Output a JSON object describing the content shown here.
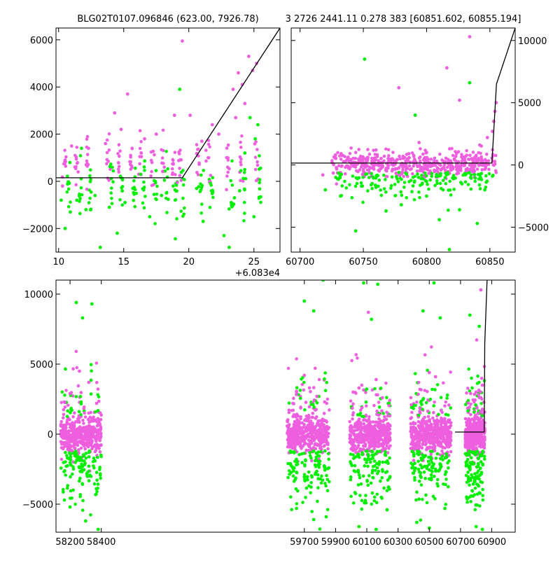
{
  "title_left": "BLG02T0107.096846 (623.00, 7926.78)",
  "title_right": "3 2726 2441.11 0.278 383 [60851.602, 60855.194]",
  "colors": {
    "series_a": "#ee5fdf",
    "series_b": "#00ee00",
    "model": "#000000"
  },
  "chart_data": [
    {
      "type": "scatter",
      "panel": "top-left",
      "title": "BLG02T0107.096846 (623.00, 7926.78)",
      "x_offset_label": "+6.083e4",
      "xlim": [
        9.8,
        27.0
      ],
      "ylim": [
        -3000,
        6500
      ],
      "x_ticks": [
        10,
        15,
        20,
        25
      ],
      "y_ticks": [
        -2000,
        0,
        2000,
        4000,
        6000
      ],
      "y_tick_labels": [
        "−2000",
        "0",
        "2000",
        "4000",
        "6000"
      ],
      "tick_side": "left",
      "model_line": {
        "x": [
          9.8,
          19.5,
          27.0
        ],
        "y": [
          150,
          150,
          6500
        ]
      },
      "series": [
        {
          "color": "#ee5fdf",
          "points": [
            [
              10.3,
              -200
            ],
            [
              11.0,
              1500
            ],
            [
              11.5,
              400
            ],
            [
              12.3,
              1400
            ],
            [
              13.6,
              1600
            ],
            [
              14.3,
              2900
            ],
            [
              14.8,
              2200
            ],
            [
              15.3,
              3700
            ],
            [
              16.6,
              1800
            ],
            [
              17.5,
              2000
            ],
            [
              18.9,
              2800
            ],
            [
              19.5,
              5950
            ],
            [
              20.1,
              2800
            ],
            [
              21.0,
              1700
            ],
            [
              21.8,
              2400
            ],
            [
              22.3,
              2000
            ],
            [
              23.4,
              3900
            ],
            [
              23.8,
              4600
            ],
            [
              24.1,
              4100
            ],
            [
              24.6,
              5300
            ],
            [
              24.9,
              4700
            ],
            [
              25.2,
              5000
            ],
            [
              24.3,
              3300
            ],
            [
              23.6,
              2700
            ]
          ]
        },
        {
          "color": "#00ee00",
          "points": [
            [
              10.2,
              -800
            ],
            [
              10.5,
              -2000
            ],
            [
              10.9,
              -1300
            ],
            [
              11.4,
              -800
            ],
            [
              12.1,
              -1200
            ],
            [
              12.8,
              -600
            ],
            [
              13.2,
              -2800
            ],
            [
              13.9,
              -1100
            ],
            [
              14.5,
              -2200
            ],
            [
              15.1,
              -900
            ],
            [
              15.7,
              -300
            ],
            [
              16.3,
              300
            ],
            [
              17.0,
              -1500
            ],
            [
              17.9,
              -600
            ],
            [
              18.8,
              -200
            ],
            [
              19.3,
              3900
            ],
            [
              20.6,
              -300
            ],
            [
              21.1,
              -1700
            ],
            [
              22.7,
              -2300
            ],
            [
              23.1,
              -2800
            ],
            [
              23.5,
              -700
            ],
            [
              23.9,
              -400
            ],
            [
              24.3,
              1200
            ],
            [
              25.0,
              -1500
            ],
            [
              25.3,
              2400
            ],
            [
              24.7,
              2700
            ],
            [
              25.1,
              1800
            ]
          ]
        }
      ]
    },
    {
      "type": "scatter",
      "panel": "top-right",
      "title": "3 2726 2441.11 0.278 383 [60851.602, 60855.194]",
      "xlim": [
        60693,
        60870
      ],
      "ylim": [
        -7000,
        11000
      ],
      "x_ticks": [
        60700,
        60750,
        60800,
        60850
      ],
      "y_ticks": [
        -5000,
        0,
        5000,
        10000
      ],
      "y_tick_labels": [
        "−5000",
        "0",
        "5000",
        "10000"
      ],
      "tick_side": "right",
      "model_line": {
        "x": [
          60693,
          60851.6,
          60855.2,
          60870
        ],
        "y": [
          150,
          150,
          6500,
          11000
        ]
      },
      "series": [
        {
          "color": "#ee5fdf",
          "points": [
            [
              60718,
              -800
            ],
            [
              60728,
              800
            ],
            [
              60738,
              600
            ],
            [
              60752,
              500
            ],
            [
              60760,
              1200
            ],
            [
              60770,
              300
            ],
            [
              60778,
              6200
            ],
            [
              60786,
              900
            ],
            [
              60794,
              1800
            ],
            [
              60800,
              1000
            ],
            [
              60808,
              300
            ],
            [
              60816,
              7800
            ],
            [
              60826,
              5200
            ],
            [
              60834,
              10300
            ],
            [
              60842,
              1600
            ],
            [
              60848,
              2200
            ],
            [
              60852,
              2700
            ],
            [
              60853,
              3500
            ],
            [
              60854,
              4300
            ],
            [
              60855,
              5000
            ]
          ]
        },
        {
          "color": "#00ee00",
          "points": [
            [
              60720,
              -2000
            ],
            [
              60732,
              -2500
            ],
            [
              60744,
              -5300
            ],
            [
              60751,
              8500
            ],
            [
              60760,
              -1800
            ],
            [
              60768,
              -3700
            ],
            [
              60780,
              -3200
            ],
            [
              60791,
              4000
            ],
            [
              60800,
              -2500
            ],
            [
              60810,
              -4400
            ],
            [
              60818,
              -6800
            ],
            [
              60826,
              -3600
            ],
            [
              60834,
              6600
            ],
            [
              60840,
              -4700
            ],
            [
              60846,
              -2000
            ],
            [
              60852,
              -900
            ]
          ]
        }
      ]
    },
    {
      "type": "scatter",
      "panel": "bottom",
      "xlim": [
        58110,
        61050
      ],
      "ylim": [
        -7000,
        11000
      ],
      "x_ticks": [
        58200,
        58400,
        59700,
        59900,
        60100,
        60300,
        60500,
        60700,
        60900
      ],
      "y_ticks": [
        -5000,
        0,
        5000,
        10000
      ],
      "y_tick_labels": [
        "−5000",
        "0",
        "5000",
        "10000"
      ],
      "tick_side": "left",
      "model_line": {
        "x": [
          60665,
          60851.6,
          60855.2,
          60870
        ],
        "y": [
          150,
          150,
          6500,
          11000
        ]
      },
      "seasons": [
        {
          "x_range": [
            58140,
            58400
          ]
        },
        {
          "x_range": [
            59590,
            59860
          ]
        },
        {
          "x_range": [
            59990,
            60250
          ]
        },
        {
          "x_range": [
            60380,
            60640
          ]
        },
        {
          "x_range": [
            60730,
            60855
          ]
        }
      ],
      "series": [
        {
          "color": "#ee5fdf",
          "points": [
            [
              58200,
              2900
            ],
            [
              58260,
              4500
            ],
            [
              58320,
              3700
            ],
            [
              58370,
              2200
            ],
            [
              59650,
              3000
            ],
            [
              59700,
              4200
            ],
            [
              59780,
              2700
            ],
            [
              59830,
              2300
            ],
            [
              60050,
              3300
            ],
            [
              60110,
              8700
            ],
            [
              60160,
              3900
            ],
            [
              60200,
              2600
            ],
            [
              60440,
              3200
            ],
            [
              60500,
              4400
            ],
            [
              60540,
              4100
            ],
            [
              60800,
              3000
            ],
            [
              60830,
              10300
            ],
            [
              60840,
              3500
            ]
          ]
        },
        {
          "color": "#00ee00",
          "points": [
            [
              58240,
              9400
            ],
            [
              58280,
              8300
            ],
            [
              58340,
              9300
            ],
            [
              58200,
              -5200
            ],
            [
              58300,
              -6200
            ],
            [
              58380,
              -6800
            ],
            [
              59700,
              9500
            ],
            [
              59760,
              8800
            ],
            [
              59820,
              11000
            ],
            [
              59650,
              -5300
            ],
            [
              59760,
              -6100
            ],
            [
              59840,
              -5900
            ],
            [
              60080,
              10800
            ],
            [
              60130,
              8200
            ],
            [
              60170,
              10700
            ],
            [
              60050,
              -6600
            ],
            [
              60160,
              -6800
            ],
            [
              60230,
              -5400
            ],
            [
              60460,
              8800
            ],
            [
              60530,
              10800
            ],
            [
              60570,
              8300
            ],
            [
              60420,
              -6300
            ],
            [
              60500,
              -6700
            ],
            [
              60600,
              -5300
            ],
            [
              60760,
              8500
            ],
            [
              60820,
              7700
            ],
            [
              60800,
              -6600
            ],
            [
              60840,
              -6800
            ]
          ]
        }
      ]
    }
  ]
}
